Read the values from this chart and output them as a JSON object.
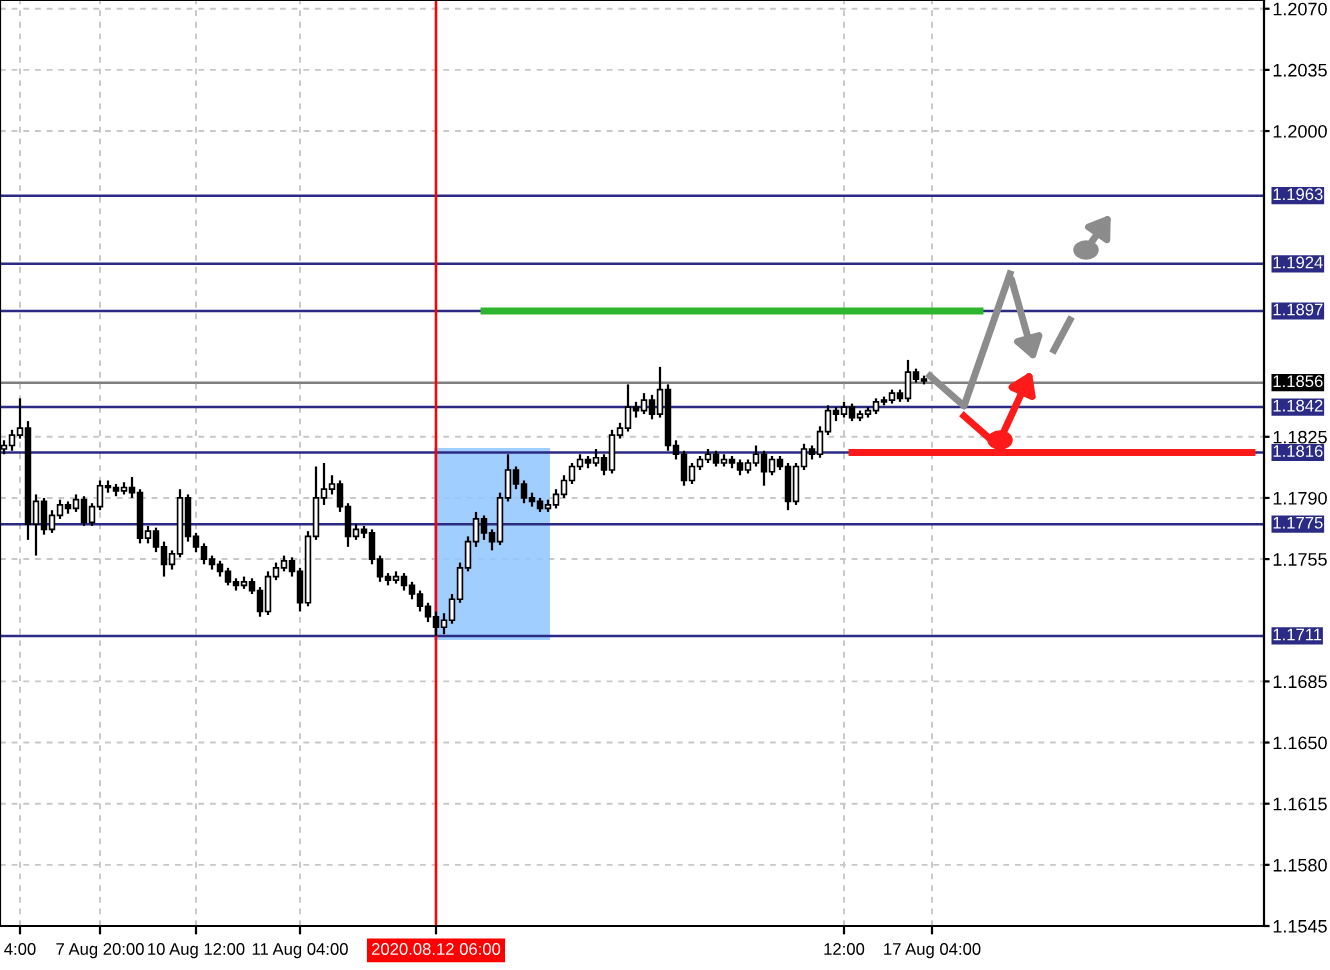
{
  "chart_data": {
    "type": "candlestick",
    "categories": [
      null,
      null,
      "4:00",
      null,
      null,
      null,
      null,
      null,
      null,
      null,
      null,
      null,
      "7 Aug 20:00",
      null,
      null,
      null,
      null,
      null,
      null,
      null,
      null,
      null,
      null,
      null,
      "10 Aug 12:00",
      null,
      null,
      null,
      null,
      null,
      null,
      null,
      null,
      null,
      null,
      null,
      null,
      "11 Aug 04:00",
      null,
      null,
      null,
      null,
      null,
      null,
      null,
      null,
      null,
      null,
      null,
      null,
      null,
      null,
      null,
      null,
      "2020.08.12 06:00",
      null,
      null,
      null,
      null,
      null,
      null,
      null,
      null,
      null,
      null,
      null,
      null,
      null,
      null,
      null,
      null,
      null,
      null,
      null,
      null,
      null,
      null,
      null,
      null,
      null,
      null,
      null,
      null,
      null,
      null,
      null,
      null,
      null,
      null,
      null,
      null,
      null,
      null,
      null,
      null,
      null,
      null,
      null,
      null,
      null,
      null,
      null,
      null,
      null,
      null,
      "12:00",
      null,
      null,
      null,
      null,
      null,
      null,
      null,
      null,
      null,
      null,
      "17 Aug 04:00",
      null,
      null,
      null,
      null,
      null,
      null,
      null,
      null,
      null,
      null,
      null,
      null,
      null,
      null,
      null,
      null,
      null,
      null,
      null,
      null,
      null,
      null,
      null,
      null,
      null,
      null,
      null,
      null,
      null,
      null,
      null,
      null,
      null,
      null,
      null,
      null,
      null,
      null,
      null,
      null,
      null
    ],
    "ohlc": [
      [
        1.1818,
        1.1823,
        1.1815,
        1.182
      ],
      [
        1.182,
        1.1829,
        1.1817,
        1.1826
      ],
      [
        1.1826,
        1.1847,
        1.1824,
        1.183
      ],
      [
        1.183,
        1.1834,
        1.1766,
        1.1775
      ],
      [
        1.1775,
        1.1792,
        1.1757,
        1.1788
      ],
      [
        1.1788,
        1.179,
        1.1769,
        1.1772
      ],
      [
        1.1772,
        1.1783,
        1.177,
        1.178
      ],
      [
        1.178,
        1.1789,
        1.1778,
        1.1786
      ],
      [
        1.1786,
        1.1788,
        1.1781,
        1.1784
      ],
      [
        1.1784,
        1.1792,
        1.1782,
        1.1789
      ],
      [
        1.1789,
        1.1791,
        1.1774,
        1.1776
      ],
      [
        1.1776,
        1.1787,
        1.1774,
        1.1785
      ],
      [
        1.1785,
        1.18,
        1.1783,
        1.1797
      ],
      [
        1.1797,
        1.18,
        1.1793,
        1.1796
      ],
      [
        1.1796,
        1.1798,
        1.1791,
        1.1794
      ],
      [
        1.1794,
        1.1799,
        1.1792,
        1.1796
      ],
      [
        1.1796,
        1.1802,
        1.179,
        1.1793
      ],
      [
        1.1793,
        1.1795,
        1.1764,
        1.1767
      ],
      [
        1.1767,
        1.1774,
        1.1764,
        1.1771
      ],
      [
        1.1771,
        1.1773,
        1.1759,
        1.1762
      ],
      [
        1.1762,
        1.1765,
        1.1745,
        1.1752
      ],
      [
        1.1752,
        1.176,
        1.1749,
        1.1758
      ],
      [
        1.1758,
        1.1795,
        1.1756,
        1.179
      ],
      [
        1.179,
        1.1792,
        1.1765,
        1.1768
      ],
      [
        1.1768,
        1.177,
        1.1759,
        1.1762
      ],
      [
        1.1762,
        1.1764,
        1.1752,
        1.1755
      ],
      [
        1.1755,
        1.1757,
        1.1749,
        1.1752
      ],
      [
        1.1752,
        1.1754,
        1.1745,
        1.1748
      ],
      [
        1.1748,
        1.175,
        1.174,
        1.1742
      ],
      [
        1.1742,
        1.1744,
        1.1737,
        1.174
      ],
      [
        1.174,
        1.1745,
        1.1738,
        1.1742
      ],
      [
        1.1742,
        1.1744,
        1.1735,
        1.1737
      ],
      [
        1.1737,
        1.1739,
        1.1722,
        1.1725
      ],
      [
        1.1725,
        1.1748,
        1.1723,
        1.1745
      ],
      [
        1.1745,
        1.1753,
        1.1743,
        1.175
      ],
      [
        1.175,
        1.1757,
        1.1748,
        1.1754
      ],
      [
        1.1754,
        1.1756,
        1.1745,
        1.1748
      ],
      [
        1.1748,
        1.175,
        1.1725,
        1.173
      ],
      [
        1.173,
        1.1771,
        1.1728,
        1.1768
      ],
      [
        1.1768,
        1.1808,
        1.1766,
        1.179
      ],
      [
        1.179,
        1.181,
        1.1786,
        1.1795
      ],
      [
        1.1795,
        1.1803,
        1.1792,
        1.1798
      ],
      [
        1.1798,
        1.18,
        1.1782,
        1.1785
      ],
      [
        1.1785,
        1.1787,
        1.1762,
        1.1768
      ],
      [
        1.1768,
        1.1775,
        1.1766,
        1.1772
      ],
      [
        1.1772,
        1.1774,
        1.1767,
        1.177
      ],
      [
        1.177,
        1.1772,
        1.1752,
        1.1755
      ],
      [
        1.1755,
        1.1757,
        1.1742,
        1.1745
      ],
      [
        1.1745,
        1.1747,
        1.174,
        1.1743
      ],
      [
        1.1743,
        1.1748,
        1.1741,
        1.1745
      ],
      [
        1.1745,
        1.1747,
        1.1737,
        1.174
      ],
      [
        1.174,
        1.1742,
        1.1732,
        1.1735
      ],
      [
        1.1735,
        1.1737,
        1.1725,
        1.1728
      ],
      [
        1.1728,
        1.173,
        1.1719,
        1.1722
      ],
      [
        1.1722,
        1.1725,
        1.1711,
        1.1716
      ],
      [
        1.1716,
        1.1724,
        1.1712,
        1.172
      ],
      [
        1.172,
        1.1735,
        1.1718,
        1.1732
      ],
      [
        1.1732,
        1.1753,
        1.173,
        1.175
      ],
      [
        1.175,
        1.1768,
        1.1748,
        1.1765
      ],
      [
        1.1765,
        1.1782,
        1.1762,
        1.1778
      ],
      [
        1.1778,
        1.178,
        1.1766,
        1.177
      ],
      [
        1.177,
        1.1772,
        1.176,
        1.1765
      ],
      [
        1.1765,
        1.1793,
        1.1763,
        1.179
      ],
      [
        1.179,
        1.1815,
        1.1788,
        1.1806
      ],
      [
        1.1806,
        1.1808,
        1.1795,
        1.1798
      ],
      [
        1.1798,
        1.18,
        1.1787,
        1.179
      ],
      [
        1.179,
        1.1793,
        1.1785,
        1.1788
      ],
      [
        1.1788,
        1.179,
        1.1782,
        1.1784
      ],
      [
        1.1784,
        1.1789,
        1.1782,
        1.1786
      ],
      [
        1.1786,
        1.1795,
        1.1784,
        1.1792
      ],
      [
        1.1792,
        1.1803,
        1.179,
        1.18
      ],
      [
        1.18,
        1.181,
        1.1798,
        1.1808
      ],
      [
        1.1808,
        1.1815,
        1.1806,
        1.1812
      ],
      [
        1.1812,
        1.1814,
        1.1807,
        1.181
      ],
      [
        1.181,
        1.1818,
        1.1808,
        1.1813
      ],
      [
        1.1813,
        1.1815,
        1.1803,
        1.1806
      ],
      [
        1.1806,
        1.1829,
        1.1804,
        1.1826
      ],
      [
        1.1826,
        1.1833,
        1.1824,
        1.183
      ],
      [
        1.183,
        1.1855,
        1.1828,
        1.1842
      ],
      [
        1.1842,
        1.1845,
        1.1836,
        1.184
      ],
      [
        1.184,
        1.185,
        1.1838,
        1.1846
      ],
      [
        1.1846,
        1.1849,
        1.1835,
        1.1838
      ],
      [
        1.1838,
        1.1865,
        1.1836,
        1.1852
      ],
      [
        1.1852,
        1.1855,
        1.1817,
        1.182
      ],
      [
        1.182,
        1.1823,
        1.1812,
        1.1815
      ],
      [
        1.1815,
        1.1817,
        1.1797,
        1.18
      ],
      [
        1.18,
        1.181,
        1.1798,
        1.1808
      ],
      [
        1.1808,
        1.1814,
        1.1806,
        1.1812
      ],
      [
        1.1812,
        1.1818,
        1.181,
        1.1815
      ],
      [
        1.1815,
        1.1817,
        1.1808,
        1.181
      ],
      [
        1.181,
        1.1815,
        1.1808,
        1.1812
      ],
      [
        1.1812,
        1.1814,
        1.1807,
        1.181
      ],
      [
        1.181,
        1.1812,
        1.1803,
        1.1806
      ],
      [
        1.1806,
        1.1812,
        1.1804,
        1.181
      ],
      [
        1.181,
        1.182,
        1.1808,
        1.1815
      ],
      [
        1.1815,
        1.1817,
        1.1797,
        1.1805
      ],
      [
        1.1805,
        1.1814,
        1.1803,
        1.1812
      ],
      [
        1.1812,
        1.1814,
        1.1806,
        1.1808
      ],
      [
        1.1808,
        1.181,
        1.1783,
        1.1788
      ],
      [
        1.1788,
        1.181,
        1.1786,
        1.1808
      ],
      [
        1.1808,
        1.1821,
        1.1806,
        1.1818
      ],
      [
        1.1818,
        1.182,
        1.1812,
        1.1815
      ],
      [
        1.1815,
        1.1831,
        1.1813,
        1.1828
      ],
      [
        1.1828,
        1.1843,
        1.1826,
        1.184
      ],
      [
        1.184,
        1.1842,
        1.1834,
        1.1838
      ],
      [
        1.1838,
        1.1845,
        1.1836,
        1.1842
      ],
      [
        1.1842,
        1.1844,
        1.1834,
        1.1836
      ],
      [
        1.1836,
        1.184,
        1.1834,
        1.1838
      ],
      [
        1.1838,
        1.1842,
        1.1836,
        1.184
      ],
      [
        1.184,
        1.1847,
        1.1838,
        1.1845
      ],
      [
        1.1845,
        1.1848,
        1.1843,
        1.1846
      ],
      [
        1.1846,
        1.1852,
        1.1844,
        1.185
      ],
      [
        1.185,
        1.1852,
        1.1845,
        1.1847
      ],
      [
        1.1847,
        1.1869,
        1.1845,
        1.1862
      ],
      [
        1.1862,
        1.1864,
        1.1856,
        1.1858
      ],
      [
        1.1858,
        1.186,
        1.1855,
        1.1857
      ],
      null,
      null,
      null,
      null,
      null,
      null,
      null,
      null,
      null,
      null,
      null,
      null,
      null,
      null,
      null,
      null,
      null,
      null,
      null,
      null,
      null,
      null,
      null,
      null,
      null,
      null,
      null,
      null,
      null,
      null,
      null,
      null,
      null,
      null,
      null,
      null,
      null,
      null,
      null,
      null,
      null,
      null
    ],
    "series": [
      {
        "type": "line",
        "color": "#2db52d",
        "values": [
          null,
          null,
          null,
          null,
          null,
          null,
          null,
          null,
          null,
          null,
          null,
          null,
          null,
          null,
          null,
          null,
          null,
          null,
          null,
          null,
          null,
          null,
          null,
          null,
          null,
          null,
          null,
          null,
          null,
          null,
          null,
          null,
          null,
          null,
          null,
          null,
          null,
          null,
          null,
          null,
          null,
          null,
          null,
          null,
          null,
          null,
          null,
          null,
          null,
          null,
          null,
          null,
          null,
          null,
          null,
          null,
          null,
          null,
          null,
          null,
          1.1897,
          1.1897,
          1.1897,
          1.1897,
          1.1897,
          1.1897,
          1.1897,
          1.1897,
          1.1897,
          1.1897,
          1.1897,
          1.1897,
          1.1897,
          1.1897,
          1.1897,
          1.1897,
          1.1897,
          1.1897,
          1.1897,
          1.1897,
          1.1897,
          1.1897,
          1.1897,
          1.1897,
          1.1897,
          1.1897,
          1.1897,
          1.1897,
          1.1897,
          1.1897,
          1.1897,
          1.1897,
          1.1897,
          1.1897,
          1.1897,
          1.1897,
          1.1897,
          1.1897,
          1.1897,
          1.1897,
          1.1897,
          1.1897,
          1.1897,
          1.1897,
          1.1897,
          1.1897,
          1.1897,
          1.1897,
          1.1897,
          1.1897,
          1.1897,
          1.1897,
          1.1897,
          1.1897,
          1.1897,
          1.1897,
          1.1897,
          1.1897,
          1.1897,
          1.1897,
          1.1897,
          1.1897,
          1.1897,
          null,
          null,
          null,
          null,
          null,
          null,
          null,
          null,
          null,
          null,
          null,
          null,
          null,
          null,
          null,
          null,
          null,
          null,
          null,
          null,
          null,
          null,
          null,
          null,
          null,
          null,
          null,
          null,
          null,
          null,
          null,
          null,
          null,
          null,
          null
        ]
      },
      {
        "type": "line",
        "color": "#ff1a1a",
        "values": [
          null,
          null,
          null,
          null,
          null,
          null,
          null,
          null,
          null,
          null,
          null,
          null,
          null,
          null,
          null,
          null,
          null,
          null,
          null,
          null,
          null,
          null,
          null,
          null,
          null,
          null,
          null,
          null,
          null,
          null,
          null,
          null,
          null,
          null,
          null,
          null,
          null,
          null,
          null,
          null,
          null,
          null,
          null,
          null,
          null,
          null,
          null,
          null,
          null,
          null,
          null,
          null,
          null,
          null,
          null,
          null,
          null,
          null,
          null,
          null,
          null,
          null,
          null,
          null,
          null,
          null,
          null,
          null,
          null,
          null,
          null,
          null,
          null,
          null,
          null,
          null,
          null,
          null,
          null,
          null,
          null,
          null,
          null,
          null,
          null,
          null,
          null,
          null,
          null,
          null,
          null,
          null,
          null,
          null,
          null,
          null,
          null,
          null,
          null,
          null,
          null,
          null,
          null,
          null,
          null,
          null,
          1.1816,
          1.1816,
          1.1816,
          1.1816,
          1.1816,
          1.1816,
          1.1816,
          1.1816,
          1.1816,
          1.1816,
          1.1816,
          1.1816,
          1.1816,
          1.1816,
          1.1816,
          1.1816,
          1.1816,
          1.1816,
          1.1816,
          1.1816,
          1.1816,
          1.1816,
          1.1816,
          1.1816,
          1.1816,
          1.1816,
          1.1816,
          1.1816,
          1.1816,
          1.1816,
          1.1816,
          1.1816,
          1.1816,
          1.1816,
          1.1816,
          1.1816,
          1.1816,
          1.1816,
          1.1816,
          1.1816,
          1.1816,
          1.1816,
          1.1816,
          1.1816,
          1.1816,
          1.1816,
          1.1816,
          1.1816,
          1.1816,
          1.1816,
          1.1816,
          null
        ]
      }
    ],
    "ylim": [
      1.1545,
      1.2075
    ],
    "yticks": [
      {
        "value": 1.207,
        "label": "1.2070"
      },
      {
        "value": 1.2035,
        "label": "1.2035"
      },
      {
        "value": 1.2,
        "label": "1.2000"
      },
      {
        "value": 1.1825,
        "label": "1.1825"
      },
      {
        "value": 1.179,
        "label": "1.1790"
      },
      {
        "value": 1.1755,
        "label": "1.1755"
      },
      {
        "value": 1.1685,
        "label": "1.1685"
      },
      {
        "value": 1.165,
        "label": "1.1650"
      },
      {
        "value": 1.1615,
        "label": "1.1615"
      },
      {
        "value": 1.158,
        "label": "1.1580"
      },
      {
        "value": 1.1545,
        "label": "1.1545"
      }
    ],
    "ref_lines": [
      {
        "axis": "y",
        "value": 1.1963,
        "label": "1.1963",
        "color": "#2b2b85"
      },
      {
        "axis": "y",
        "value": 1.1924,
        "label": "1.1924",
        "color": "#2b2b85"
      },
      {
        "axis": "y",
        "value": 1.1897,
        "label": "1.1897",
        "color": "#2b2b85"
      },
      {
        "axis": "y",
        "value": 1.1856,
        "label": "1.1856",
        "color": "#7f7f7f"
      },
      {
        "axis": "y",
        "value": 1.1842,
        "label": "1.1842",
        "color": "#2b2b85"
      },
      {
        "axis": "y",
        "value": 1.1816,
        "label": "1.1816",
        "color": "#2b2b85"
      },
      {
        "axis": "y",
        "value": 1.1775,
        "label": "1.1775",
        "color": "#2b2b85"
      },
      {
        "axis": "y",
        "value": 1.1711,
        "label": "1.1711",
        "color": "#2b2b85"
      },
      {
        "axis": "x",
        "value": "2020.08.12 06:00",
        "color": "#ff0000"
      }
    ],
    "grid": true
  }
}
